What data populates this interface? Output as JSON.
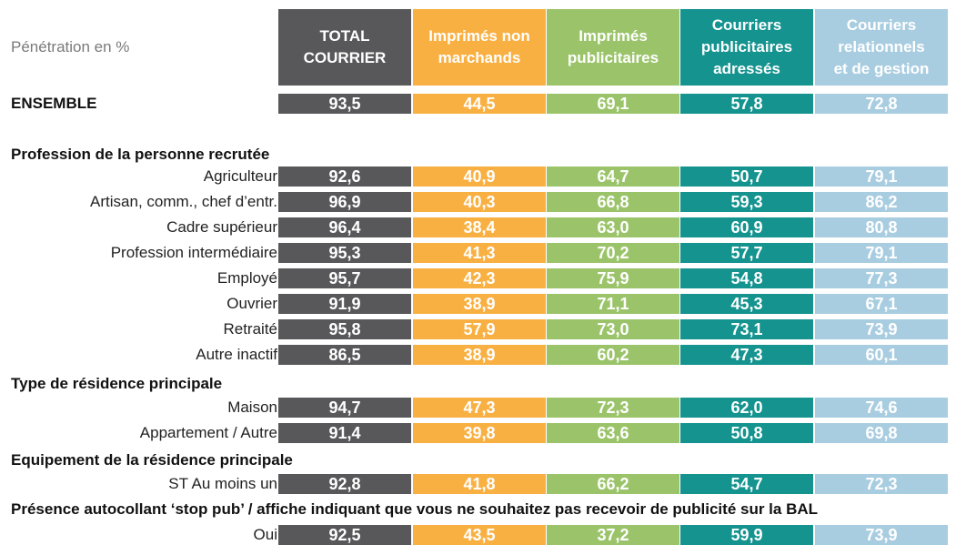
{
  "top_label": "Pénétration en %",
  "columns": [
    {
      "label": "TOTAL COURRIER",
      "lines": [
        "TOTAL",
        "COURRIER"
      ],
      "bg": "#58585a",
      "fg": "#ffffff",
      "hdr_fg": "#ffffff"
    },
    {
      "label": "Imprimés non marchands",
      "lines": [
        "Imprimés non",
        "marchands"
      ],
      "bg": "#f9b042",
      "fg": "#ffffff",
      "hdr_fg": "#ffffff"
    },
    {
      "label": "Imprimés publicitaires",
      "lines": [
        "Imprimés",
        "publicitaires"
      ],
      "bg": "#9bc46a",
      "fg": "#ffffff",
      "hdr_fg": "#ffffff"
    },
    {
      "label": "Courriers publicitaires adressés",
      "lines": [
        "Courriers",
        "publicitaires",
        "adressés"
      ],
      "bg": "#14938f",
      "fg": "#ffffff",
      "hdr_fg": "#ffffff"
    },
    {
      "label": "Courriers relationnels et de gestion",
      "lines": [
        "Courriers",
        "relationnels",
        "et de gestion"
      ],
      "bg": "#a9cde0",
      "fg": "#ffffff",
      "hdr_fg": "#ffffff"
    }
  ],
  "ensemble": {
    "label": "ENSEMBLE",
    "values": [
      "93,5",
      "44,5",
      "69,1",
      "57,8",
      "72,8"
    ]
  },
  "sections": [
    {
      "title": "Profession de la personne recrutée",
      "rows": [
        {
          "label": "Agriculteur",
          "values": [
            "92,6",
            "40,9",
            "64,7",
            "50,7",
            "79,1"
          ]
        },
        {
          "label": "Artisan, comm., chef d’entr.",
          "values": [
            "96,9",
            "40,3",
            "66,8",
            "59,3",
            "86,2"
          ]
        },
        {
          "label": "Cadre supérieur",
          "values": [
            "96,4",
            "38,4",
            "63,0",
            "60,9",
            "80,8"
          ]
        },
        {
          "label": "Profession intermédiaire",
          "values": [
            "95,3",
            "41,3",
            "70,2",
            "57,7",
            "79,1"
          ]
        },
        {
          "label": "Employé",
          "values": [
            "95,7",
            "42,3",
            "75,9",
            "54,8",
            "77,3"
          ]
        },
        {
          "label": "Ouvrier",
          "values": [
            "91,9",
            "38,9",
            "71,1",
            "45,3",
            "67,1"
          ]
        },
        {
          "label": "Retraité",
          "values": [
            "95,8",
            "57,9",
            "73,0",
            "73,1",
            "73,9"
          ]
        },
        {
          "label": "Autre inactif",
          "values": [
            "86,5",
            "38,9",
            "60,2",
            "47,3",
            "60,1"
          ]
        }
      ]
    },
    {
      "title": "Type de résidence principale",
      "rows": [
        {
          "label": "Maison",
          "values": [
            "94,7",
            "47,3",
            "72,3",
            "62,0",
            "74,6"
          ]
        },
        {
          "label": "Appartement / Autre",
          "values": [
            "91,4",
            "39,8",
            "63,6",
            "50,8",
            "69,8"
          ]
        }
      ]
    },
    {
      "title": "Equipement de la résidence principale",
      "rows": [
        {
          "label": "ST Au moins un",
          "values": [
            "92,8",
            "41,8",
            "66,2",
            "54,7",
            "72,3"
          ]
        }
      ]
    },
    {
      "title": "Présence autocollant ‘stop pub’ / affiche indiquant que vous ne souhaitez pas recevoir de publicité sur la BAL",
      "rows": [
        {
          "label": "Oui",
          "values": [
            "92,5",
            "43,5",
            "37,2",
            "59,9",
            "73,9"
          ]
        }
      ]
    }
  ]
}
